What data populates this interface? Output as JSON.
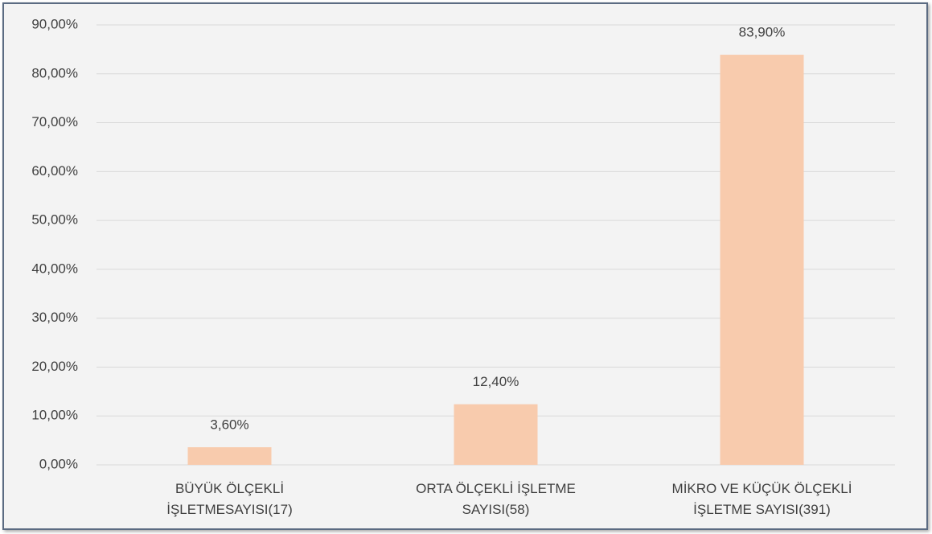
{
  "chart_data": {
    "type": "bar",
    "categories": [
      "BÜYÜK ÖLÇEKLİ\nİŞLETMESAYISI(17)",
      "ORTA ÖLÇEKLİ İŞLETME\nSAYISI(58)",
      "MİKRO VE KÜÇÜK ÖLÇEKLİ\nİŞLETME SAYISI(391)"
    ],
    "values": [
      3.6,
      12.4,
      83.9
    ],
    "value_labels": [
      "3,60%",
      "12,40%",
      "83,90%"
    ],
    "color": "#f8cbad",
    "ylim": [
      0,
      90
    ],
    "yticks": [
      {
        "value": 0,
        "label": "0,00%"
      },
      {
        "value": 10,
        "label": "10,00%"
      },
      {
        "value": 20,
        "label": "20,00%"
      },
      {
        "value": 30,
        "label": "30,00%"
      },
      {
        "value": 40,
        "label": "40,00%"
      },
      {
        "value": 50,
        "label": "50,00%"
      },
      {
        "value": 60,
        "label": "60,00%"
      },
      {
        "value": 70,
        "label": "70,00%"
      },
      {
        "value": 80,
        "label": "80,00%"
      },
      {
        "value": 90,
        "label": "90,00%"
      }
    ],
    "grid": true
  }
}
